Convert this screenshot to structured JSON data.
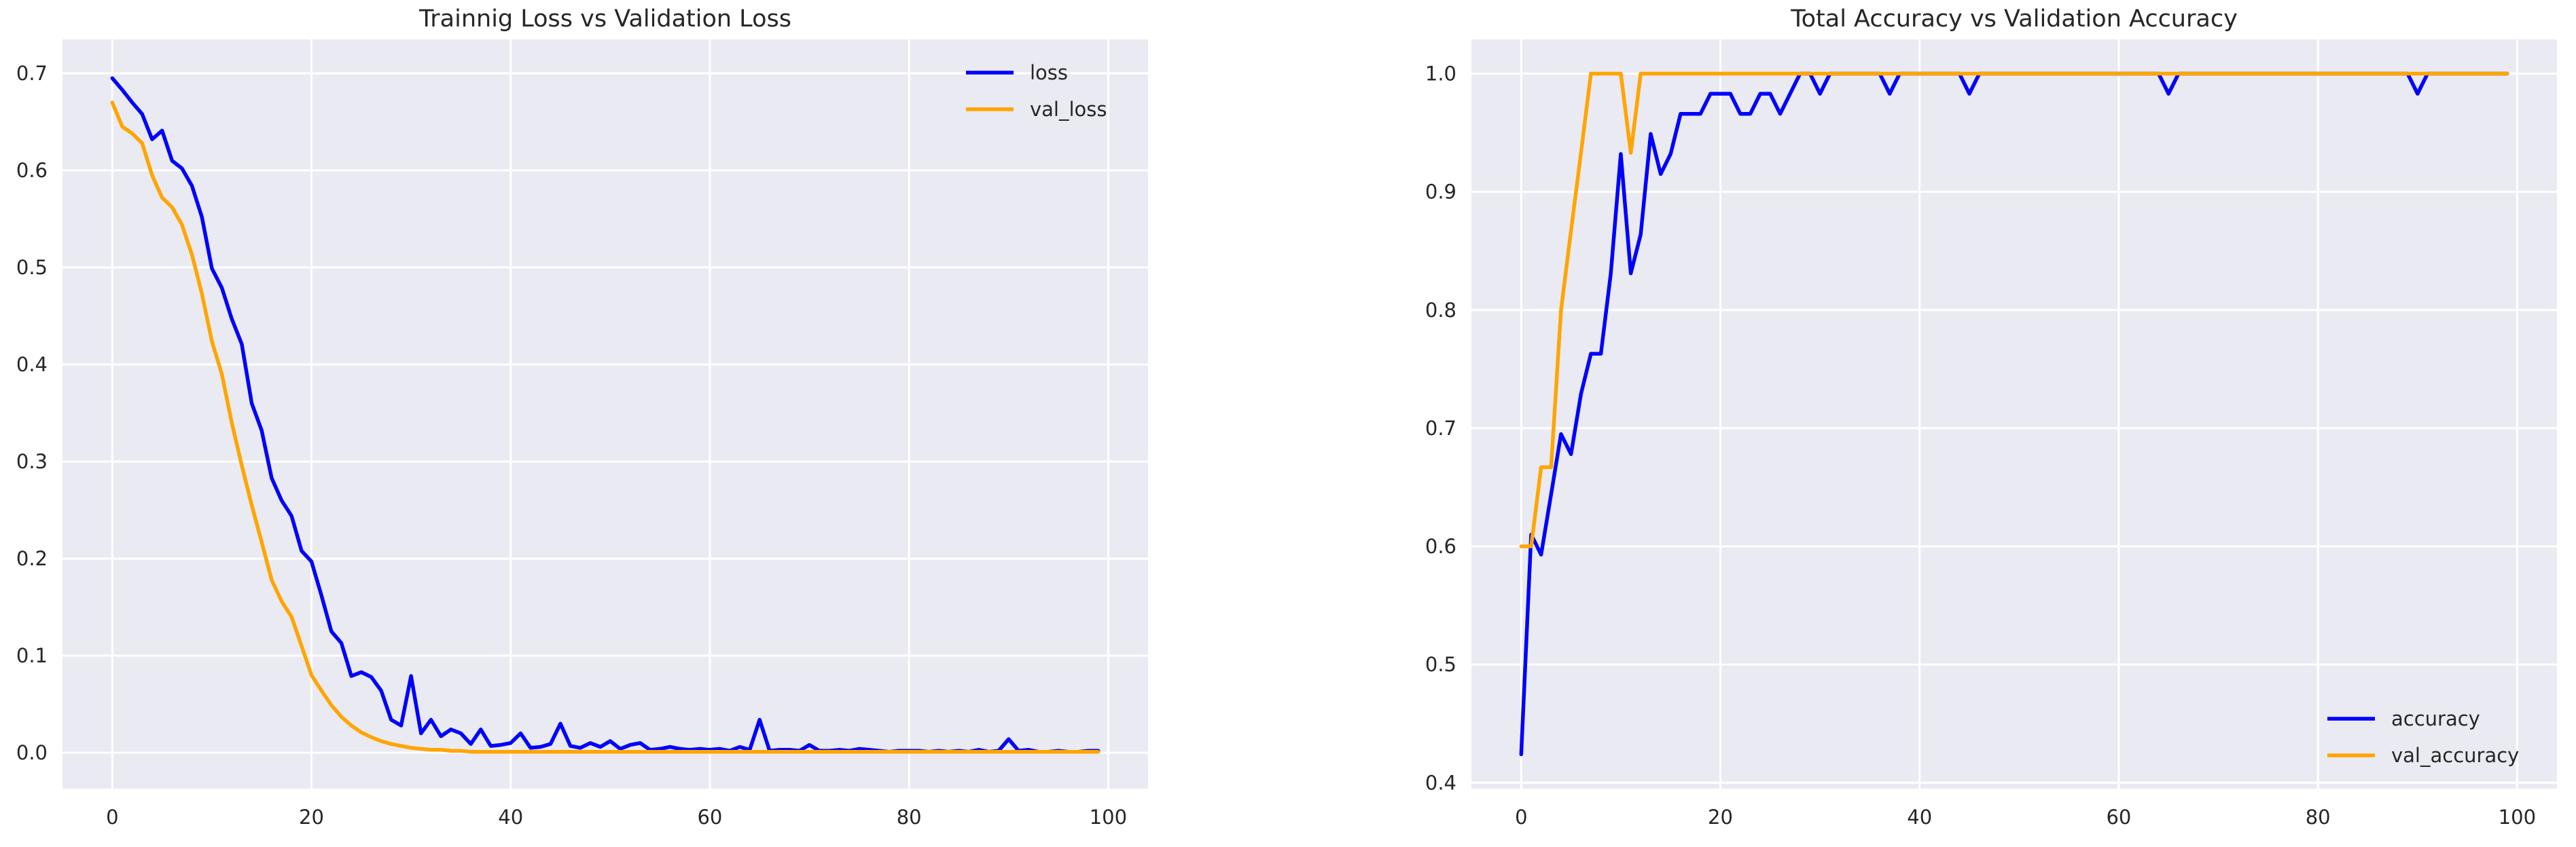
{
  "chart_data": [
    {
      "type": "line",
      "title": "Trainnig Loss vs Validation Loss",
      "xlabel": "",
      "ylabel": "",
      "xlim": [
        -5,
        104
      ],
      "ylim": [
        -0.037,
        0.735
      ],
      "xticks": [
        0,
        20,
        40,
        60,
        80,
        100
      ],
      "xtick_labels": [
        "0",
        "20",
        "40",
        "60",
        "80",
        "100"
      ],
      "yticks": [
        0.0,
        0.1,
        0.2,
        0.3,
        0.4,
        0.5,
        0.6,
        0.7
      ],
      "ytick_labels": [
        "0.0",
        "0.1",
        "0.2",
        "0.3",
        "0.4",
        "0.5",
        "0.6",
        "0.7"
      ],
      "grid": true,
      "legend_position": "top-right",
      "x": [
        0,
        1,
        2,
        3,
        4,
        5,
        6,
        7,
        8,
        9,
        10,
        11,
        12,
        13,
        14,
        15,
        16,
        17,
        18,
        19,
        20,
        21,
        22,
        23,
        24,
        25,
        26,
        27,
        28,
        29,
        30,
        31,
        32,
        33,
        34,
        35,
        36,
        37,
        38,
        39,
        40,
        41,
        42,
        43,
        44,
        45,
        46,
        47,
        48,
        49,
        50,
        51,
        52,
        53,
        54,
        55,
        56,
        57,
        58,
        59,
        60,
        61,
        62,
        63,
        64,
        65,
        66,
        67,
        68,
        69,
        70,
        71,
        72,
        73,
        74,
        75,
        76,
        77,
        78,
        79,
        80,
        81,
        82,
        83,
        84,
        85,
        86,
        87,
        88,
        89,
        90,
        91,
        92,
        93,
        94,
        95,
        96,
        97,
        98,
        99
      ],
      "series": [
        {
          "name": "loss",
          "color": "#0000ff",
          "values": [
            0.695,
            0.683,
            0.67,
            0.658,
            0.632,
            0.641,
            0.61,
            0.602,
            0.584,
            0.552,
            0.499,
            0.479,
            0.447,
            0.421,
            0.36,
            0.332,
            0.283,
            0.26,
            0.244,
            0.208,
            0.197,
            0.162,
            0.125,
            0.113,
            0.079,
            0.083,
            0.078,
            0.064,
            0.034,
            0.028,
            0.079,
            0.02,
            0.034,
            0.017,
            0.024,
            0.02,
            0.009,
            0.024,
            0.007,
            0.008,
            0.01,
            0.02,
            0.005,
            0.006,
            0.009,
            0.03,
            0.007,
            0.005,
            0.01,
            0.006,
            0.012,
            0.004,
            0.008,
            0.01,
            0.003,
            0.004,
            0.006,
            0.004,
            0.003,
            0.004,
            0.003,
            0.004,
            0.002,
            0.006,
            0.003,
            0.034,
            0.002,
            0.003,
            0.003,
            0.002,
            0.008,
            0.002,
            0.002,
            0.003,
            0.002,
            0.004,
            0.003,
            0.002,
            0.001,
            0.002,
            0.002,
            0.002,
            0.001,
            0.002,
            0.001,
            0.002,
            0.001,
            0.003,
            0.001,
            0.002,
            0.014,
            0.002,
            0.003,
            0.001,
            0.001,
            0.002,
            0.001,
            0.001,
            0.002,
            0.002
          ]
        },
        {
          "name": "val_loss",
          "color": "#ffa500",
          "values": [
            0.67,
            0.645,
            0.638,
            0.628,
            0.595,
            0.572,
            0.562,
            0.544,
            0.513,
            0.473,
            0.424,
            0.39,
            0.34,
            0.296,
            0.255,
            0.217,
            0.178,
            0.156,
            0.14,
            0.11,
            0.08,
            0.064,
            0.049,
            0.037,
            0.028,
            0.021,
            0.016,
            0.012,
            0.009,
            0.007,
            0.005,
            0.004,
            0.003,
            0.003,
            0.002,
            0.002,
            0.001,
            0.001,
            0.001,
            0.001,
            0.001,
            0.001,
            0.001,
            0.001,
            0.001,
            0.001,
            0.001,
            0.001,
            0.001,
            0.001,
            0.001,
            0.001,
            0.001,
            0.001,
            0.001,
            0.001,
            0.001,
            0.001,
            0.001,
            0.001,
            0.001,
            0.001,
            0.001,
            0.001,
            0.001,
            0.001,
            0.001,
            0.001,
            0.001,
            0.001,
            0.001,
            0.001,
            0.001,
            0.001,
            0.001,
            0.001,
            0.001,
            0.001,
            0.001,
            0.001,
            0.001,
            0.001,
            0.001,
            0.001,
            0.001,
            0.001,
            0.001,
            0.001,
            0.001,
            0.001,
            0.001,
            0.001,
            0.001,
            0.001,
            0.001,
            0.001,
            0.001,
            0.001,
            0.001,
            0.001
          ]
        }
      ]
    },
    {
      "type": "line",
      "title": "Total Accuracy vs Validation Accuracy",
      "xlabel": "",
      "ylabel": "",
      "xlim": [
        -5,
        104
      ],
      "ylim": [
        0.395,
        1.029
      ],
      "xticks": [
        0,
        20,
        40,
        60,
        80,
        100
      ],
      "xtick_labels": [
        "0",
        "20",
        "40",
        "60",
        "80",
        "100"
      ],
      "yticks": [
        0.4,
        0.5,
        0.6,
        0.7,
        0.8,
        0.9,
        1.0
      ],
      "ytick_labels": [
        "0.4",
        "0.5",
        "0.6",
        "0.7",
        "0.8",
        "0.9",
        "1.0"
      ],
      "grid": true,
      "legend_position": "bottom-right",
      "x": [
        0,
        1,
        2,
        3,
        4,
        5,
        6,
        7,
        8,
        9,
        10,
        11,
        12,
        13,
        14,
        15,
        16,
        17,
        18,
        19,
        20,
        21,
        22,
        23,
        24,
        25,
        26,
        27,
        28,
        29,
        30,
        31,
        32,
        33,
        34,
        35,
        36,
        37,
        38,
        39,
        40,
        41,
        42,
        43,
        44,
        45,
        46,
        47,
        48,
        49,
        50,
        51,
        52,
        53,
        54,
        55,
        56,
        57,
        58,
        59,
        60,
        61,
        62,
        63,
        64,
        65,
        66,
        67,
        68,
        69,
        70,
        71,
        72,
        73,
        74,
        75,
        76,
        77,
        78,
        79,
        80,
        81,
        82,
        83,
        84,
        85,
        86,
        87,
        88,
        89,
        90,
        91,
        92,
        93,
        94,
        95,
        96,
        97,
        98,
        99
      ],
      "series": [
        {
          "name": "accuracy",
          "color": "#0000ff",
          "values": [
            0.424,
            0.61,
            0.593,
            0.644,
            0.695,
            0.678,
            0.729,
            0.763,
            0.763,
            0.831,
            0.932,
            0.831,
            0.864,
            0.949,
            0.915,
            0.932,
            0.966,
            0.966,
            0.966,
            0.983,
            0.983,
            0.983,
            0.966,
            0.966,
            0.983,
            0.983,
            0.966,
            0.983,
            1.0,
            1.0,
            0.983,
            1.0,
            1.0,
            1.0,
            1.0,
            1.0,
            1.0,
            0.983,
            1.0,
            1.0,
            1.0,
            1.0,
            1.0,
            1.0,
            1.0,
            0.983,
            1.0,
            1.0,
            1.0,
            1.0,
            1.0,
            1.0,
            1.0,
            1.0,
            1.0,
            1.0,
            1.0,
            1.0,
            1.0,
            1.0,
            1.0,
            1.0,
            1.0,
            1.0,
            1.0,
            0.983,
            1.0,
            1.0,
            1.0,
            1.0,
            1.0,
            1.0,
            1.0,
            1.0,
            1.0,
            1.0,
            1.0,
            1.0,
            1.0,
            1.0,
            1.0,
            1.0,
            1.0,
            1.0,
            1.0,
            1.0,
            1.0,
            1.0,
            1.0,
            1.0,
            0.983,
            1.0,
            1.0,
            1.0,
            1.0,
            1.0,
            1.0,
            1.0,
            1.0,
            1.0
          ]
        },
        {
          "name": "val_accuracy",
          "color": "#ffa500",
          "values": [
            0.6,
            0.6,
            0.667,
            0.667,
            0.8,
            0.867,
            0.933,
            1.0,
            1.0,
            1.0,
            1.0,
            0.933,
            1.0,
            1.0,
            1.0,
            1.0,
            1.0,
            1.0,
            1.0,
            1.0,
            1.0,
            1.0,
            1.0,
            1.0,
            1.0,
            1.0,
            1.0,
            1.0,
            1.0,
            1.0,
            1.0,
            1.0,
            1.0,
            1.0,
            1.0,
            1.0,
            1.0,
            1.0,
            1.0,
            1.0,
            1.0,
            1.0,
            1.0,
            1.0,
            1.0,
            1.0,
            1.0,
            1.0,
            1.0,
            1.0,
            1.0,
            1.0,
            1.0,
            1.0,
            1.0,
            1.0,
            1.0,
            1.0,
            1.0,
            1.0,
            1.0,
            1.0,
            1.0,
            1.0,
            1.0,
            1.0,
            1.0,
            1.0,
            1.0,
            1.0,
            1.0,
            1.0,
            1.0,
            1.0,
            1.0,
            1.0,
            1.0,
            1.0,
            1.0,
            1.0,
            1.0,
            1.0,
            1.0,
            1.0,
            1.0,
            1.0,
            1.0,
            1.0,
            1.0,
            1.0,
            1.0,
            1.0,
            1.0,
            1.0,
            1.0,
            1.0,
            1.0,
            1.0,
            1.0,
            1.0
          ]
        }
      ]
    }
  ]
}
